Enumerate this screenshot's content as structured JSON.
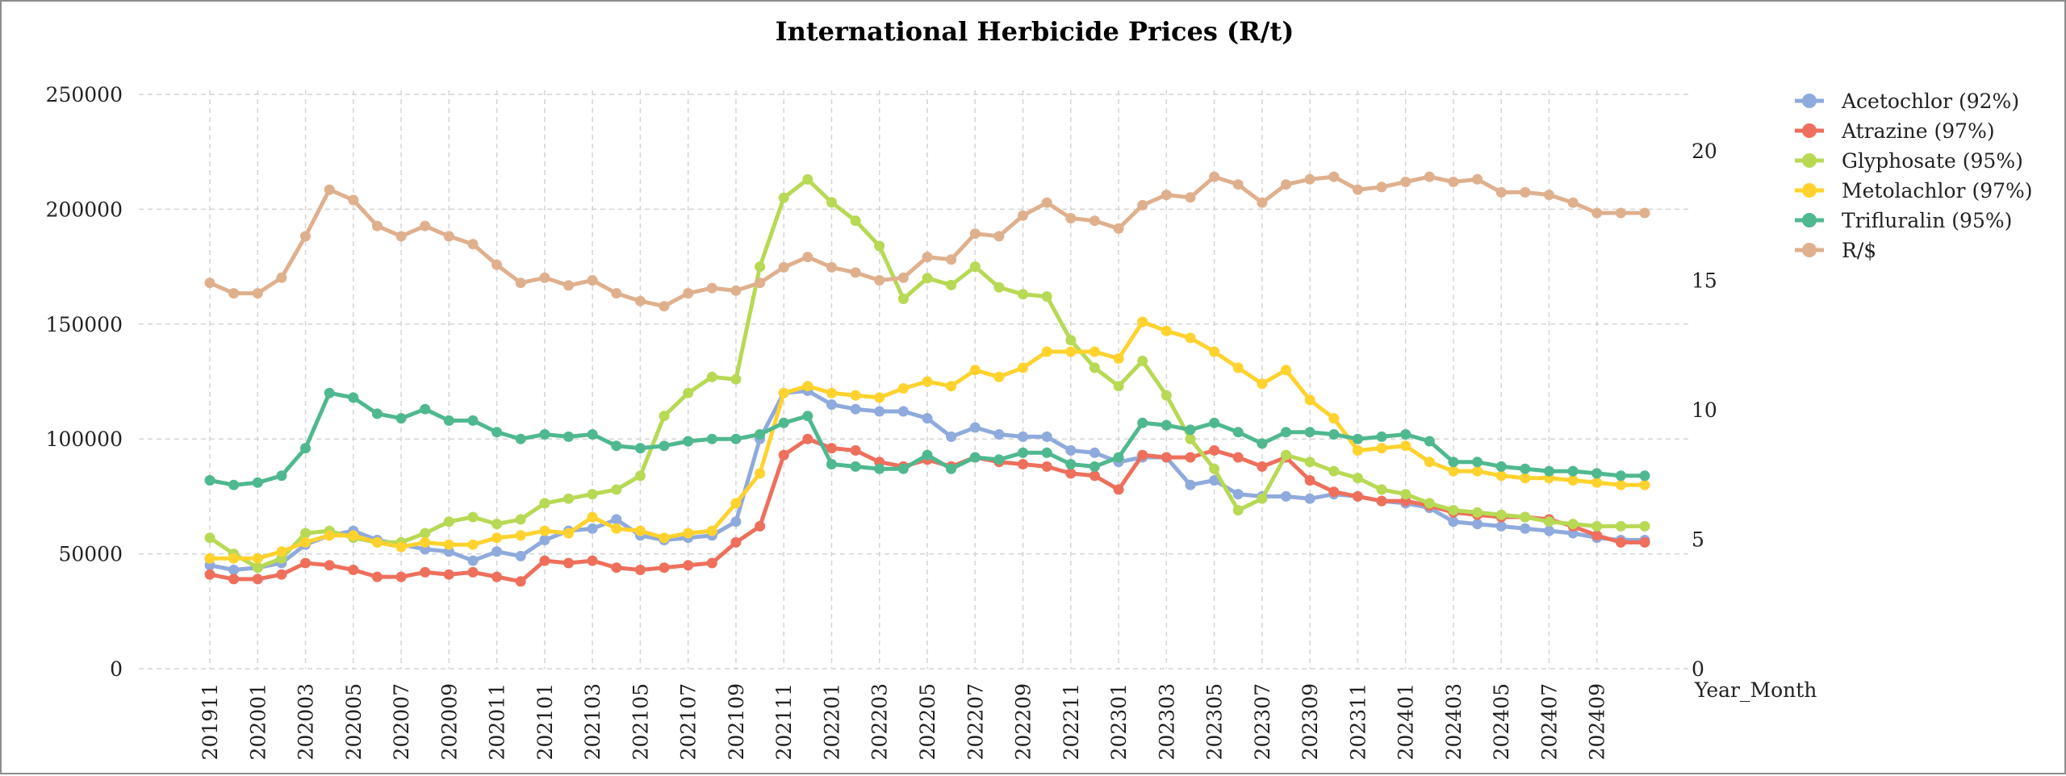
{
  "chart_data": {
    "type": "line",
    "title": "International Herbicide Prices (R/t)",
    "xlabel": "Year_Month",
    "ylabel": "",
    "y2label": "",
    "ylim": [
      0,
      250000
    ],
    "y2lim": [
      0,
      20
    ],
    "yticks": [
      "0",
      "50000",
      "100000",
      "150000",
      "200000",
      "250000"
    ],
    "y2ticks": [
      "0",
      "5",
      "10",
      "15",
      "20"
    ],
    "grid": true,
    "legend_position": "right",
    "x": [
      "201911",
      "201912",
      "202001",
      "202002",
      "202003",
      "202004",
      "202005",
      "202006",
      "202007",
      "202008",
      "202009",
      "202010",
      "202011",
      "202012",
      "202101",
      "202102",
      "202103",
      "202104",
      "202105",
      "202106",
      "202107",
      "202108",
      "202109",
      "202110",
      "202111",
      "202112",
      "202201",
      "202202",
      "202203",
      "202204",
      "202205",
      "202206",
      "202207",
      "202208",
      "202209",
      "202210",
      "202211",
      "202212",
      "202301",
      "202302",
      "202303",
      "202304",
      "202305",
      "202306",
      "202307",
      "202308",
      "202309",
      "202310",
      "202311",
      "202312",
      "202401",
      "202402",
      "202403",
      "202404",
      "202405",
      "202406",
      "202407",
      "202408",
      "202409",
      "202410",
      "202411"
    ],
    "x_tick_labels": [
      "201911",
      "202001",
      "202003",
      "202005",
      "202007",
      "202009",
      "202011",
      "202101",
      "202103",
      "202105",
      "202107",
      "202109",
      "202111",
      "202201",
      "202203",
      "202205",
      "202207",
      "202209",
      "202211",
      "202301",
      "202303",
      "202305",
      "202307",
      "202309",
      "202311",
      "202401",
      "202403",
      "202405",
      "202407",
      "202409"
    ],
    "series": [
      {
        "name": "Acetochlor (92%)",
        "color": "#8faadc",
        "axis": "left",
        "values": [
          45000,
          43000,
          44000,
          46000,
          54000,
          58000,
          60000,
          56000,
          54000,
          52000,
          51000,
          47000,
          51000,
          49000,
          56000,
          60000,
          61000,
          65000,
          58000,
          56000,
          57000,
          58000,
          64000,
          100000,
          120000,
          121000,
          115000,
          113000,
          112000,
          112000,
          109000,
          101000,
          105000,
          102000,
          101000,
          101000,
          95000,
          94000,
          90000,
          92000,
          92000,
          80000,
          82000,
          76000,
          75000,
          75000,
          74000,
          76000,
          75000,
          73000,
          72000,
          70000,
          64000,
          63000,
          62000,
          61000,
          60000,
          59000,
          57000,
          56000,
          56000
        ]
      },
      {
        "name": "Atrazine (97%)",
        "color": "#ee6f5c",
        "axis": "left",
        "values": [
          41000,
          39000,
          39000,
          41000,
          46000,
          45000,
          43000,
          40000,
          40000,
          42000,
          41000,
          42000,
          40000,
          38000,
          47000,
          46000,
          47000,
          44000,
          43000,
          44000,
          45000,
          46000,
          55000,
          62000,
          93000,
          100000,
          96000,
          95000,
          90000,
          88000,
          91000,
          88000,
          92000,
          90000,
          89000,
          88000,
          85000,
          84000,
          78000,
          93000,
          92000,
          92000,
          95000,
          92000,
          88000,
          92000,
          82000,
          77000,
          75000,
          73000,
          73000,
          71000,
          68000,
          67000,
          66000,
          66000,
          65000,
          62000,
          58000,
          55000,
          55000
        ]
      },
      {
        "name": "Glyphosate (95%)",
        "color": "#b7d954",
        "axis": "left",
        "values": [
          57000,
          50000,
          44000,
          48000,
          59000,
          60000,
          57000,
          55000,
          55000,
          59000,
          64000,
          66000,
          63000,
          65000,
          72000,
          74000,
          76000,
          78000,
          84000,
          110000,
          120000,
          127000,
          126000,
          175000,
          205000,
          213000,
          203000,
          195000,
          184000,
          161000,
          170000,
          167000,
          175000,
          166000,
          163000,
          162000,
          143000,
          131000,
          123000,
          134000,
          119000,
          100000,
          87000,
          69000,
          74000,
          93000,
          90000,
          86000,
          83000,
          78000,
          76000,
          72000,
          69000,
          68000,
          67000,
          66000,
          64000,
          63000,
          62000,
          62000,
          62000
        ]
      },
      {
        "name": "Metolachlor (97%)",
        "color": "#ffd22e",
        "axis": "left",
        "values": [
          48000,
          48000,
          48000,
          51000,
          55000,
          58000,
          58000,
          55000,
          53000,
          55000,
          54000,
          54000,
          57000,
          58000,
          60000,
          59000,
          66000,
          61000,
          60000,
          57000,
          59000,
          60000,
          72000,
          85000,
          120000,
          123000,
          120000,
          119000,
          118000,
          122000,
          125000,
          123000,
          130000,
          127000,
          131000,
          138000,
          138000,
          138000,
          135000,
          151000,
          147000,
          144000,
          138000,
          131000,
          124000,
          130000,
          117000,
          109000,
          95000,
          96000,
          97000,
          90000,
          86000,
          86000,
          84000,
          83000,
          83000,
          82000,
          81000,
          80000,
          80000
        ]
      },
      {
        "name": "Trifluralin (95%)",
        "color": "#4fb88f",
        "axis": "left",
        "values": [
          82000,
          80000,
          81000,
          84000,
          96000,
          120000,
          118000,
          111000,
          109000,
          113000,
          108000,
          108000,
          103000,
          100000,
          102000,
          101000,
          102000,
          97000,
          96000,
          97000,
          99000,
          100000,
          100000,
          102000,
          107000,
          110000,
          89000,
          88000,
          87000,
          87000,
          93000,
          87000,
          92000,
          91000,
          94000,
          94000,
          89000,
          88000,
          92000,
          107000,
          106000,
          104000,
          107000,
          103000,
          98000,
          103000,
          103000,
          102000,
          100000,
          101000,
          102000,
          99000,
          90000,
          90000,
          88000,
          87000,
          86000,
          86000,
          85000,
          84000,
          84000
        ]
      },
      {
        "name": "R/$",
        "color": "#dfb08e",
        "axis": "right",
        "values": [
          14.9,
          14.5,
          14.5,
          15.1,
          16.7,
          18.5,
          18.1,
          17.1,
          16.7,
          17.1,
          16.7,
          16.4,
          15.6,
          14.9,
          15.1,
          14.8,
          15.0,
          14.5,
          14.2,
          14.0,
          14.5,
          14.7,
          14.6,
          14.9,
          15.5,
          15.9,
          15.5,
          15.3,
          15.0,
          15.1,
          15.9,
          15.8,
          16.8,
          16.7,
          17.5,
          18.0,
          17.4,
          17.3,
          17.0,
          17.9,
          18.3,
          18.2,
          19.0,
          18.7,
          18.0,
          18.7,
          18.9,
          19.0,
          18.5,
          18.6,
          18.8,
          19.0,
          18.8,
          18.9,
          18.4,
          18.4,
          18.3,
          18.0,
          17.6,
          17.6,
          17.6
        ]
      }
    ]
  }
}
